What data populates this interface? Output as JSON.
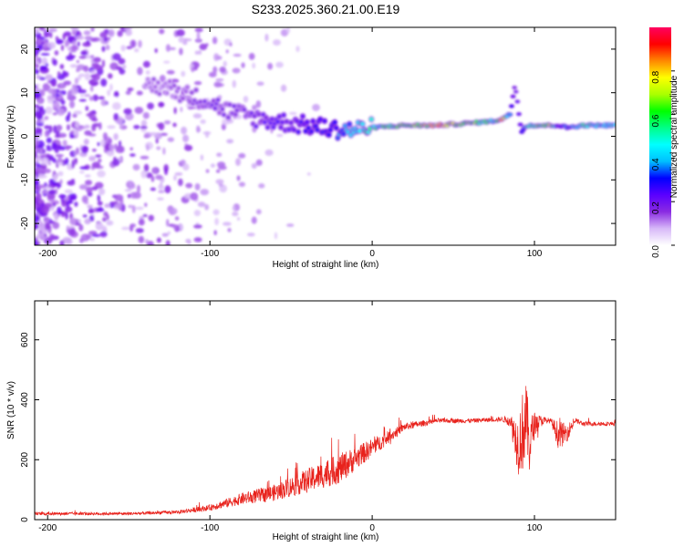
{
  "title": "S233.2025.360.21.00.E19",
  "chart_data": [
    {
      "type": "heatmap",
      "xlabel": "Height of straight line (km)",
      "ylabel": "Frequency (Hz)",
      "xlim": [
        -208,
        150
      ],
      "ylim": [
        -25,
        25
      ],
      "x_ticks": [
        -200,
        -100,
        0,
        100
      ],
      "y_ticks": [
        -20,
        -10,
        0,
        10,
        20
      ],
      "colorbar": {
        "label": "Normalized spectral amplitude",
        "range": [
          0,
          1
        ],
        "ticks": [
          "0.0",
          "0.2",
          "0.4",
          "0.6",
          "0.8"
        ],
        "tick_values": [
          0,
          0.2,
          0.4,
          0.6,
          0.8
        ],
        "colors": [
          "#ffffff",
          "#d7b8f8",
          "#8a2be2",
          "#5a00ff",
          "#0000ff",
          "#00bfff",
          "#00ffff",
          "#00ff88",
          "#00ff00",
          "#aaff00",
          "#ffff00",
          "#ff8800",
          "#ff0000",
          "#ff0060"
        ]
      },
      "ridge": {
        "x": [
          -140,
          -125,
          -110,
          -100,
          -90,
          -80,
          -70,
          -60,
          -50,
          -40,
          -30,
          -20,
          -10,
          0,
          20,
          40,
          60,
          75,
          80,
          85,
          88,
          92,
          95,
          100,
          110,
          115,
          120,
          130,
          150
        ],
        "y": [
          12,
          11,
          9,
          8,
          6,
          5,
          4,
          3.5,
          3,
          2.5,
          2,
          1.5,
          1.5,
          2,
          2.5,
          2.5,
          3,
          3.5,
          4,
          5,
          12,
          1,
          2.5,
          2.5,
          2.5,
          2.5,
          2,
          2.5,
          2.5
        ],
        "amplitude": [
          0.15,
          0.15,
          0.18,
          0.2,
          0.18,
          0.2,
          0.22,
          0.25,
          0.25,
          0.3,
          0.35,
          0.4,
          0.5,
          0.6,
          0.7,
          0.9,
          0.75,
          0.6,
          0.9,
          0.4,
          0.2,
          0.3,
          0.6,
          0.7,
          0.8,
          0.3,
          0.4,
          0.6,
          0.5
        ]
      }
    },
    {
      "type": "line",
      "xlabel": "Height of straight line (km)",
      "ylabel": "SNR (10 * v/v)",
      "xlim": [
        -208,
        150
      ],
      "ylim": [
        0,
        730
      ],
      "x_ticks": [
        -200,
        -100,
        0,
        100
      ],
      "y_ticks": [
        0,
        200,
        400,
        600
      ],
      "color": "#e8221c",
      "envelope": {
        "x": [
          -208,
          -150,
          -120,
          -100,
          -80,
          -60,
          -40,
          -20,
          0,
          20,
          40,
          60,
          80,
          85,
          90,
          93,
          95,
          97,
          100,
          105,
          110,
          115,
          120,
          125,
          130,
          150
        ],
        "mean": [
          20,
          20,
          25,
          40,
          70,
          90,
          130,
          170,
          240,
          310,
          330,
          330,
          335,
          330,
          250,
          300,
          330,
          250,
          320,
          330,
          330,
          280,
          290,
          330,
          320,
          320
        ],
        "noise": [
          10,
          10,
          12,
          20,
          40,
          55,
          80,
          100,
          60,
          25,
          15,
          15,
          15,
          40,
          200,
          280,
          250,
          200,
          80,
          30,
          15,
          100,
          60,
          20,
          15,
          15
        ]
      }
    }
  ]
}
